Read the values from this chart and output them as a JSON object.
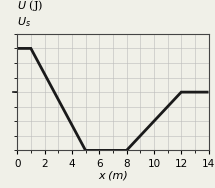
{
  "x_points": [
    0,
    1,
    5,
    5,
    8,
    8,
    12,
    14
  ],
  "y_points": [
    7,
    7,
    0,
    0,
    0,
    0,
    4,
    4
  ],
  "Us_level": 7,
  "mid_level": 4,
  "xlim": [
    0,
    14
  ],
  "ylim": [
    0,
    8.0
  ],
  "xticks": [
    0,
    2,
    4,
    6,
    8,
    10,
    12,
    14
  ],
  "xlabel": "x (m)",
  "line_color": "#1a1a1a",
  "line_width": 2.0,
  "grid_color": "#bbbbbb",
  "background_color": "#f0f0e8",
  "label_fontsize": 8,
  "tick_fontsize": 7.5
}
